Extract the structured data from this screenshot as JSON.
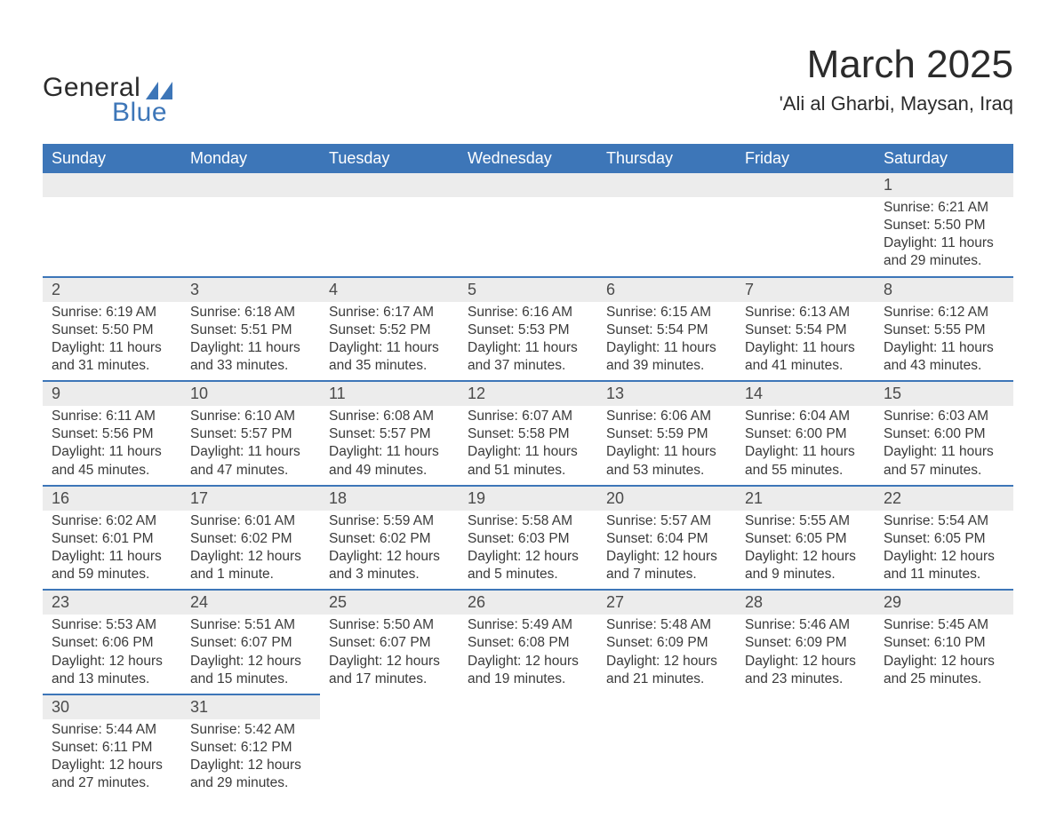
{
  "brand": {
    "name_part1": "General",
    "name_part2": "Blue",
    "text_color": "#2b2b2b",
    "accent_color": "#3d76b8"
  },
  "header": {
    "month_title": "March 2025",
    "location": "'Ali al Gharbi, Maysan, Iraq"
  },
  "colors": {
    "header_bg": "#3d76b8",
    "header_text": "#ffffff",
    "daynum_bg": "#ececec",
    "row_border": "#3d76b8",
    "body_text": "#3a3a3a",
    "page_bg": "#ffffff"
  },
  "typography": {
    "month_title_fontsize": 44,
    "location_fontsize": 22,
    "weekday_fontsize": 18,
    "daynum_fontsize": 18,
    "detail_fontsize": 15.5,
    "font_family": "Arial"
  },
  "layout": {
    "columns": 7,
    "weeks": 6,
    "start_day_index": 6
  },
  "weekdays": [
    "Sunday",
    "Monday",
    "Tuesday",
    "Wednesday",
    "Thursday",
    "Friday",
    "Saturday"
  ],
  "days": [
    {
      "n": "1",
      "sunrise": "6:21 AM",
      "sunset": "5:50 PM",
      "daylight": "11 hours and 29 minutes."
    },
    {
      "n": "2",
      "sunrise": "6:19 AM",
      "sunset": "5:50 PM",
      "daylight": "11 hours and 31 minutes."
    },
    {
      "n": "3",
      "sunrise": "6:18 AM",
      "sunset": "5:51 PM",
      "daylight": "11 hours and 33 minutes."
    },
    {
      "n": "4",
      "sunrise": "6:17 AM",
      "sunset": "5:52 PM",
      "daylight": "11 hours and 35 minutes."
    },
    {
      "n": "5",
      "sunrise": "6:16 AM",
      "sunset": "5:53 PM",
      "daylight": "11 hours and 37 minutes."
    },
    {
      "n": "6",
      "sunrise": "6:15 AM",
      "sunset": "5:54 PM",
      "daylight": "11 hours and 39 minutes."
    },
    {
      "n": "7",
      "sunrise": "6:13 AM",
      "sunset": "5:54 PM",
      "daylight": "11 hours and 41 minutes."
    },
    {
      "n": "8",
      "sunrise": "6:12 AM",
      "sunset": "5:55 PM",
      "daylight": "11 hours and 43 minutes."
    },
    {
      "n": "9",
      "sunrise": "6:11 AM",
      "sunset": "5:56 PM",
      "daylight": "11 hours and 45 minutes."
    },
    {
      "n": "10",
      "sunrise": "6:10 AM",
      "sunset": "5:57 PM",
      "daylight": "11 hours and 47 minutes."
    },
    {
      "n": "11",
      "sunrise": "6:08 AM",
      "sunset": "5:57 PM",
      "daylight": "11 hours and 49 minutes."
    },
    {
      "n": "12",
      "sunrise": "6:07 AM",
      "sunset": "5:58 PM",
      "daylight": "11 hours and 51 minutes."
    },
    {
      "n": "13",
      "sunrise": "6:06 AM",
      "sunset": "5:59 PM",
      "daylight": "11 hours and 53 minutes."
    },
    {
      "n": "14",
      "sunrise": "6:04 AM",
      "sunset": "6:00 PM",
      "daylight": "11 hours and 55 minutes."
    },
    {
      "n": "15",
      "sunrise": "6:03 AM",
      "sunset": "6:00 PM",
      "daylight": "11 hours and 57 minutes."
    },
    {
      "n": "16",
      "sunrise": "6:02 AM",
      "sunset": "6:01 PM",
      "daylight": "11 hours and 59 minutes."
    },
    {
      "n": "17",
      "sunrise": "6:01 AM",
      "sunset": "6:02 PM",
      "daylight": "12 hours and 1 minute."
    },
    {
      "n": "18",
      "sunrise": "5:59 AM",
      "sunset": "6:02 PM",
      "daylight": "12 hours and 3 minutes."
    },
    {
      "n": "19",
      "sunrise": "5:58 AM",
      "sunset": "6:03 PM",
      "daylight": "12 hours and 5 minutes."
    },
    {
      "n": "20",
      "sunrise": "5:57 AM",
      "sunset": "6:04 PM",
      "daylight": "12 hours and 7 minutes."
    },
    {
      "n": "21",
      "sunrise": "5:55 AM",
      "sunset": "6:05 PM",
      "daylight": "12 hours and 9 minutes."
    },
    {
      "n": "22",
      "sunrise": "5:54 AM",
      "sunset": "6:05 PM",
      "daylight": "12 hours and 11 minutes."
    },
    {
      "n": "23",
      "sunrise": "5:53 AM",
      "sunset": "6:06 PM",
      "daylight": "12 hours and 13 minutes."
    },
    {
      "n": "24",
      "sunrise": "5:51 AM",
      "sunset": "6:07 PM",
      "daylight": "12 hours and 15 minutes."
    },
    {
      "n": "25",
      "sunrise": "5:50 AM",
      "sunset": "6:07 PM",
      "daylight": "12 hours and 17 minutes."
    },
    {
      "n": "26",
      "sunrise": "5:49 AM",
      "sunset": "6:08 PM",
      "daylight": "12 hours and 19 minutes."
    },
    {
      "n": "27",
      "sunrise": "5:48 AM",
      "sunset": "6:09 PM",
      "daylight": "12 hours and 21 minutes."
    },
    {
      "n": "28",
      "sunrise": "5:46 AM",
      "sunset": "6:09 PM",
      "daylight": "12 hours and 23 minutes."
    },
    {
      "n": "29",
      "sunrise": "5:45 AM",
      "sunset": "6:10 PM",
      "daylight": "12 hours and 25 minutes."
    },
    {
      "n": "30",
      "sunrise": "5:44 AM",
      "sunset": "6:11 PM",
      "daylight": "12 hours and 27 minutes."
    },
    {
      "n": "31",
      "sunrise": "5:42 AM",
      "sunset": "6:12 PM",
      "daylight": "12 hours and 29 minutes."
    }
  ],
  "labels": {
    "sunrise_prefix": "Sunrise: ",
    "sunset_prefix": "Sunset: ",
    "daylight_prefix": "Daylight: "
  }
}
